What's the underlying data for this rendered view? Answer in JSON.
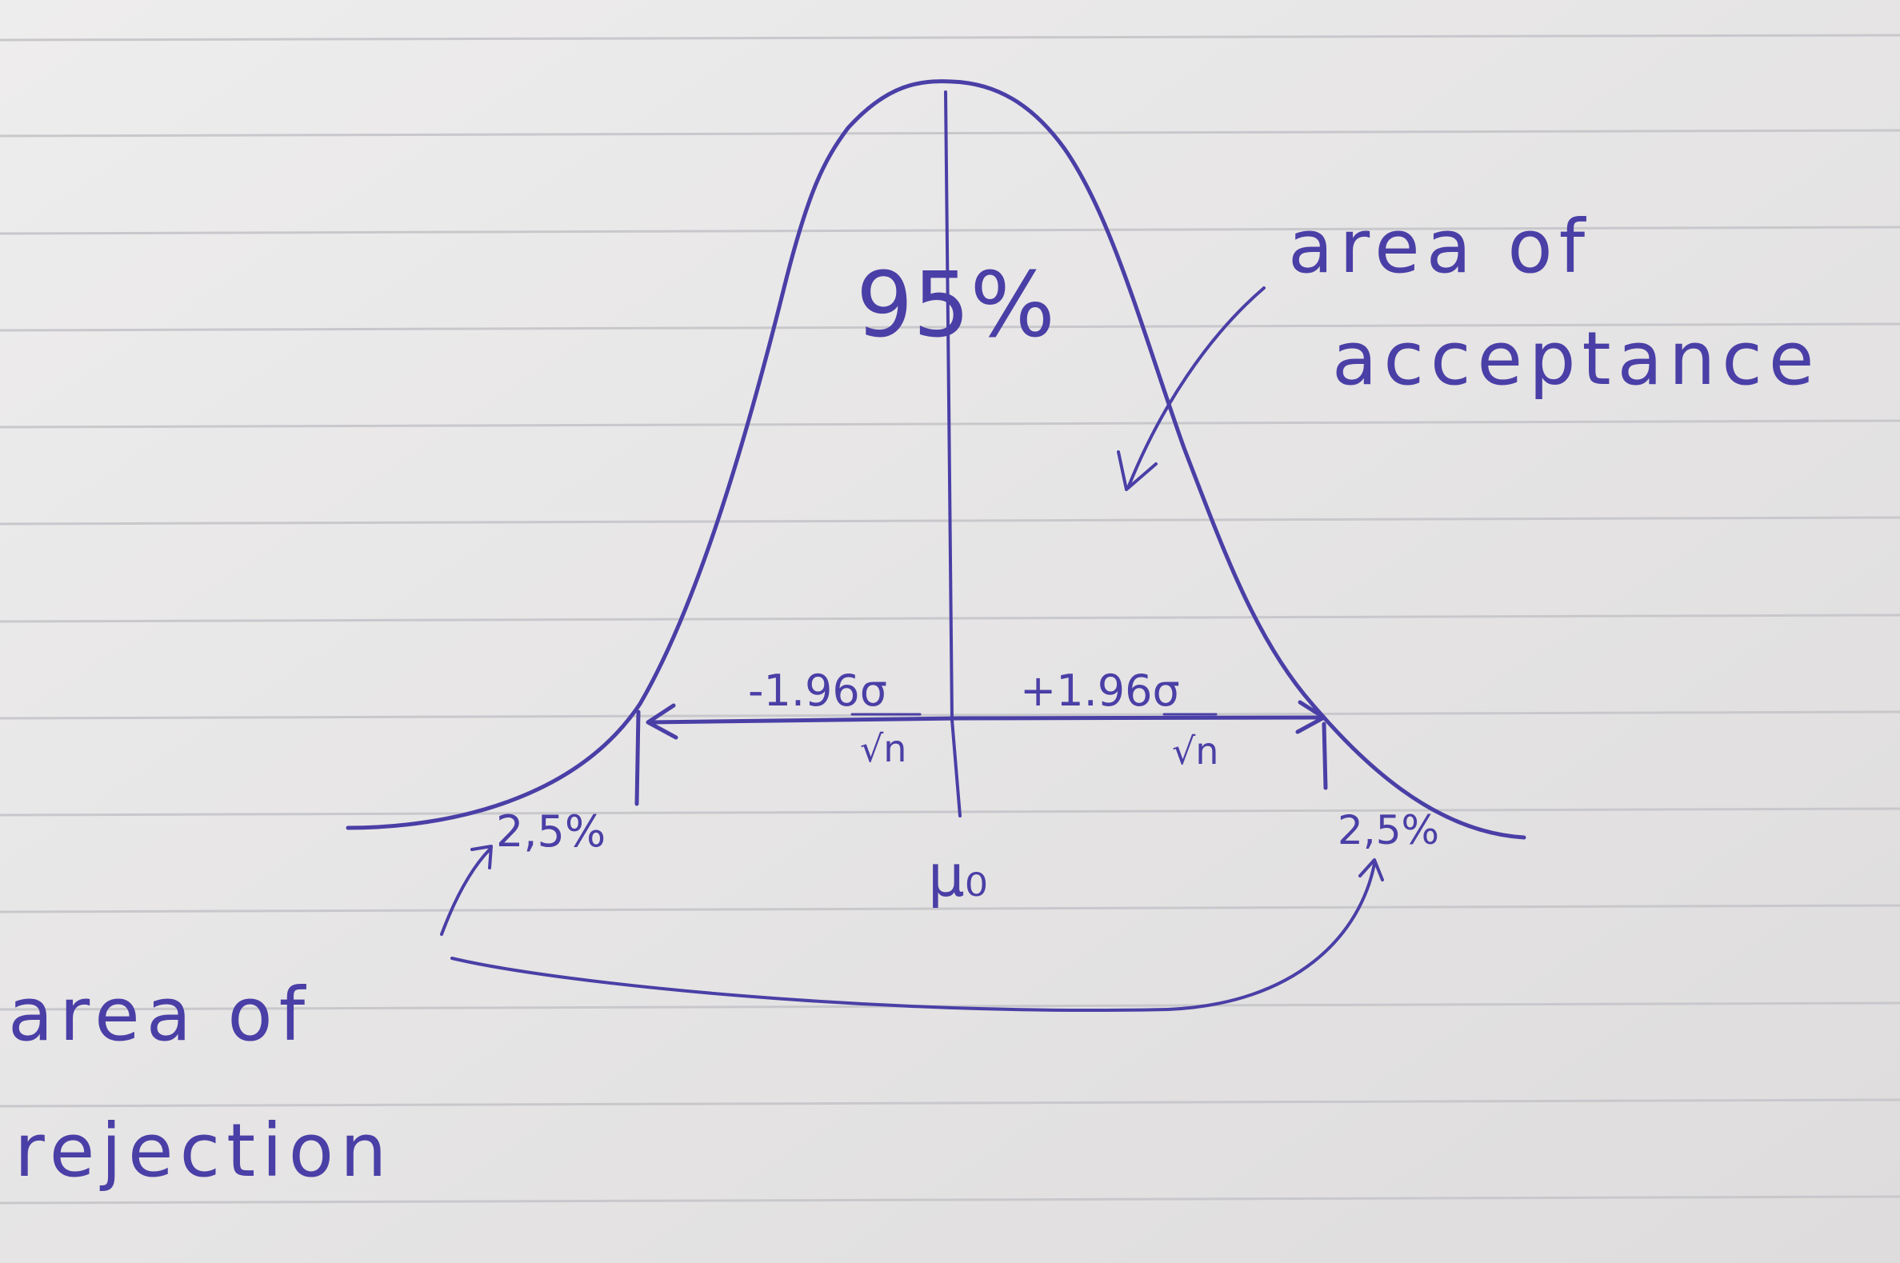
{
  "diagram": {
    "center_percent": "95%",
    "acceptance_label": [
      "area of",
      "acceptance"
    ],
    "rejection_label": [
      "area of",
      "rejection"
    ],
    "left_tail_percent": "2,5%",
    "right_tail_percent": "2,5%",
    "left_bound_numerator": "-1.96σ",
    "left_bound_denominator": "√n",
    "right_bound_numerator": "+1.96σ",
    "right_bound_denominator": "√n",
    "mean_label": "μ₀"
  },
  "colors": {
    "ink": "#4a3fa6",
    "paper": "#e9e7e6",
    "rule_line": "#c8c8cc"
  }
}
